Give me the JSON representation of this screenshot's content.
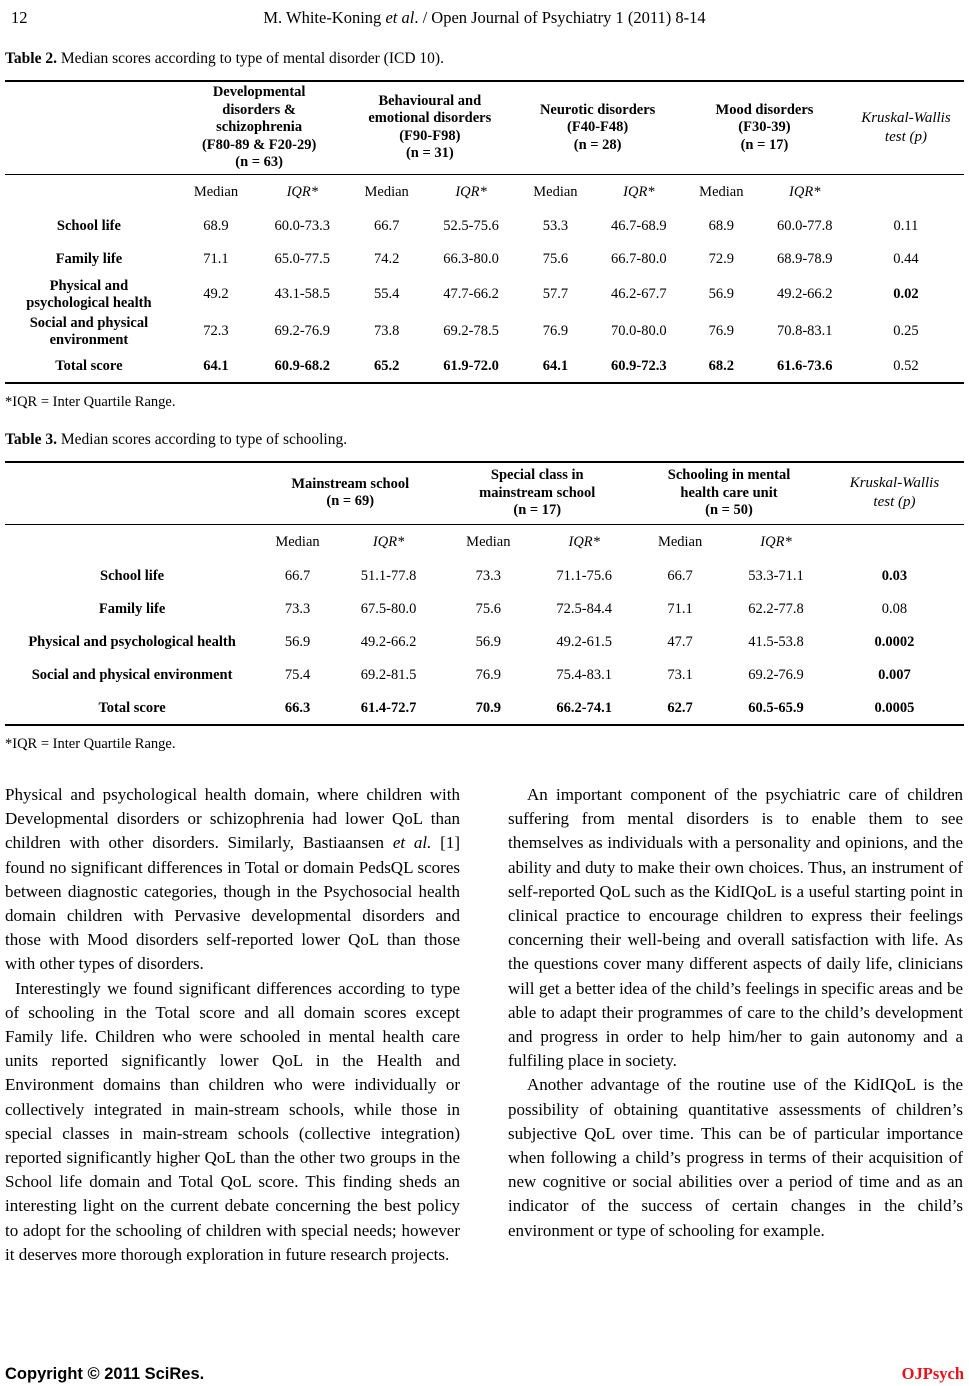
{
  "header": {
    "page_number": "12",
    "running_title_segments": [
      {
        "t": "M. White-Koning "
      },
      {
        "t": "et al",
        "i": true
      },
      {
        "t": ". / Open Journal of Psychiatry 1 (2011) 8-14"
      }
    ]
  },
  "table2": {
    "caption_label": "Table 2.",
    "caption_text": " Median scores according to type of mental disorder (ICD 10).",
    "group_headers": [
      "Developmental\ndisorders &\nschizophrenia\n(F80-89 & F20-29)\n(n = 63)",
      "Behavioural and\nemotional disorders\n(F90-F98)\n(n = 31)",
      "Neurotic disorders\n(F40-F48)\n(n = 28)",
      "Mood disorders\n(F30-39)\n(n = 17)"
    ],
    "kw_header": "Kruskal-Wallis\ntest (p)",
    "subheaders": [
      "Median",
      "IQR*",
      "Median",
      "IQR*",
      "Median",
      "IQR*",
      "Median",
      "IQR*"
    ],
    "rows": [
      {
        "label": "School life",
        "values": [
          "68.9",
          "60.0-73.3",
          "66.7",
          "52.5-75.6",
          "53.3",
          "46.7-68.9",
          "68.9",
          "60.0-77.8"
        ],
        "p": "0.11",
        "p_bold": false,
        "bold_values": false
      },
      {
        "label": "Family life",
        "values": [
          "71.1",
          "65.0-77.5",
          "74.2",
          "66.3-80.0",
          "75.6",
          "66.7-80.0",
          "72.9",
          "68.9-78.9"
        ],
        "p": "0.44",
        "p_bold": false,
        "bold_values": false
      },
      {
        "label": "Physical and\npsychological health",
        "values": [
          "49.2",
          "43.1-58.5",
          "55.4",
          "47.7-66.2",
          "57.7",
          "46.2-67.7",
          "56.9",
          "49.2-66.2"
        ],
        "p": "0.02",
        "p_bold": true,
        "bold_values": false
      },
      {
        "label": "Social and physical\nenvironment",
        "values": [
          "72.3",
          "69.2-76.9",
          "73.8",
          "69.2-78.5",
          "76.9",
          "70.0-80.0",
          "76.9",
          "70.8-83.1"
        ],
        "p": "0.25",
        "p_bold": false,
        "bold_values": false
      },
      {
        "label": "Total score",
        "values": [
          "64.1",
          "60.9-68.2",
          "65.2",
          "61.9-72.0",
          "64.1",
          "60.9-72.3",
          "68.2",
          "61.6-73.6"
        ],
        "p": "0.52",
        "p_bold": false,
        "bold_values": true
      }
    ],
    "footnote": "*IQR = Inter Quartile Range."
  },
  "table3": {
    "caption_label": "Table 3.",
    "caption_text": " Median scores according to type of schooling.",
    "group_headers": [
      "Mainstream school\n(n = 69)",
      "Special class in\nmainstream school\n(n = 17)",
      "Schooling in mental\nhealth care unit\n(n = 50)"
    ],
    "kw_header": "Kruskal-Wallis\ntest (p)",
    "subheaders": [
      "Median",
      "IQR*",
      "Median",
      "IQR*",
      "Median",
      "IQR*"
    ],
    "rows": [
      {
        "label": "School life",
        "values": [
          "66.7",
          "51.1-77.8",
          "73.3",
          "71.1-75.6",
          "66.7",
          "53.3-71.1"
        ],
        "p": "0.03",
        "p_bold": true,
        "bold_values": false
      },
      {
        "label": "Family life",
        "values": [
          "73.3",
          "67.5-80.0",
          "75.6",
          "72.5-84.4",
          "71.1",
          "62.2-77.8"
        ],
        "p": "0.08",
        "p_bold": false,
        "bold_values": false
      },
      {
        "label": "Physical and psychological health",
        "values": [
          "56.9",
          "49.2-66.2",
          "56.9",
          "49.2-61.5",
          "47.7",
          "41.5-53.8"
        ],
        "p": "0.0002",
        "p_bold": true,
        "bold_values": false
      },
      {
        "label": "Social and physical environment",
        "values": [
          "75.4",
          "69.2-81.5",
          "76.9",
          "75.4-83.1",
          "73.1",
          "69.2-76.9"
        ],
        "p": "0.007",
        "p_bold": true,
        "bold_values": false
      },
      {
        "label": "Total score",
        "values": [
          "66.3",
          "61.4-72.7",
          "70.9",
          "66.2-74.1",
          "62.7",
          "60.5-65.9"
        ],
        "p": "0.0005",
        "p_bold": true,
        "bold_values": true
      }
    ],
    "footnote": "*IQR = Inter Quartile Range."
  },
  "body": {
    "left_paragraphs": [
      {
        "indent": "none",
        "segments": [
          {
            "t": "Physical and psychological health domain, where children with Developmental disorders or schizophrenia had lower QoL than children with other disorders. Similarly, Bastiaansen "
          },
          {
            "t": "et al.",
            "i": true
          },
          {
            "t": " [1] found no significant differences in Total or domain PedsQL scores between diagnostic categories, though in the Psychosocial health domain children with Pervasive developmental disorders and those with Mood disorders self-reported lower QoL than those with other types of disorders."
          }
        ]
      },
      {
        "indent": "sm",
        "segments": [
          {
            "t": "Interestingly we found significant differences according to type of schooling in the Total score and all domain scores except Family life. Children who were schooled in mental health care units reported significantly lower QoL in the Health and Environment domains than children who were individually or collectively integrated in main-stream schools, while those in special classes in main-stream schools (collective integration) reported significantly higher QoL than the other two groups in the School life domain and Total QoL score. This finding sheds an interesting light on the current debate concerning the best policy to adopt for the schooling of children with special needs; however it deserves more thorough exploration in future research projects."
          }
        ]
      }
    ],
    "right_paragraphs": [
      {
        "indent": "md",
        "segments": [
          {
            "t": "An important component of the psychiatric care of children suffering from mental disorders is to enable them to see themselves as individuals with a personality and opinions, and the ability and duty to make their own choices. Thus, an instrument of self-reported QoL such as the KidIQoL is a useful starting point in clinical practice to encourage children to express their feelings concerning their well-being and overall satisfaction with life. As the questions cover many different aspects of daily life, clinicians will get a better idea of the child’s feelings in specific areas and be able to adapt their programmes of care to the child’s development and progress in order to help him/her to gain autonomy and a fulfiling place in society."
          }
        ]
      },
      {
        "indent": "md",
        "segments": [
          {
            "t": "Another advantage of the routine use of the KidIQoL is the possibility of obtaining quantitative assessments of children’s subjective QoL over time. This can be of particular importance when following a child’s progress in terms of their acquisition of new cognitive or social abilities over a period of time and as an indicator of the success of certain changes in the child’s environment or type of schooling for example."
          }
        ]
      }
    ]
  },
  "footer": {
    "copyright": "Copyright © 2011 SciRes.",
    "journal_abbrev": "OJPsych",
    "abbrev_color": "#e8111a"
  }
}
